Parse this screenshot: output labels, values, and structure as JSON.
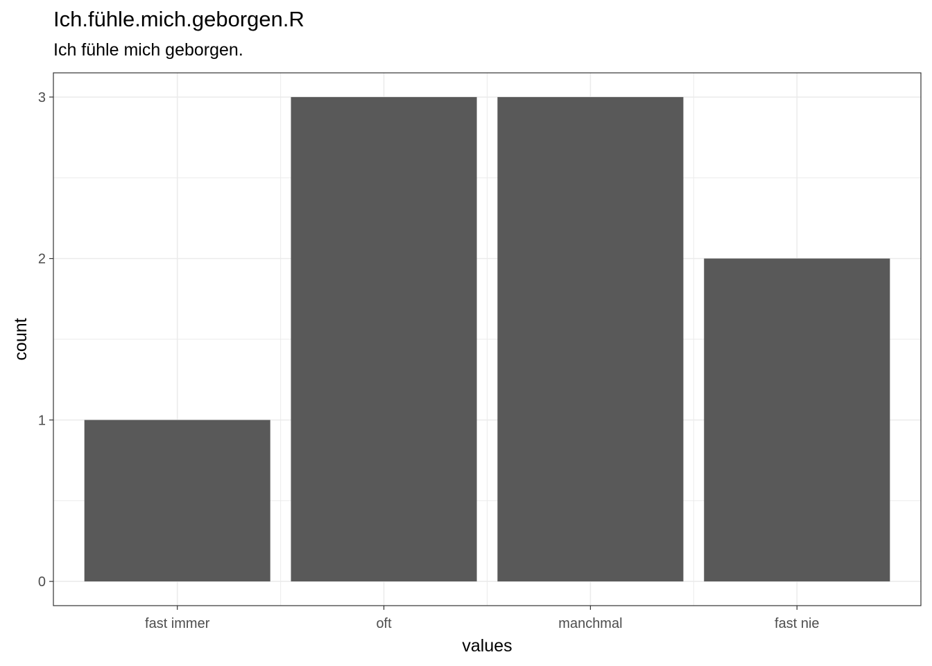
{
  "chart_data": {
    "type": "bar",
    "title": "Ich.fühle.mich.geborgen.R",
    "subtitle": "Ich fühle mich geborgen.",
    "xlabel": "values",
    "ylabel": "count",
    "categories": [
      "fast immer",
      "oft",
      "manchmal",
      "fast nie"
    ],
    "values": [
      1,
      3,
      3,
      2
    ],
    "ylim": [
      -0.15,
      3.15
    ],
    "yticks": [
      0,
      1,
      2,
      3
    ],
    "grid": true,
    "bar_color": "#595959",
    "grid_color": "#ebebeb",
    "panel_border_color": "#333333"
  }
}
